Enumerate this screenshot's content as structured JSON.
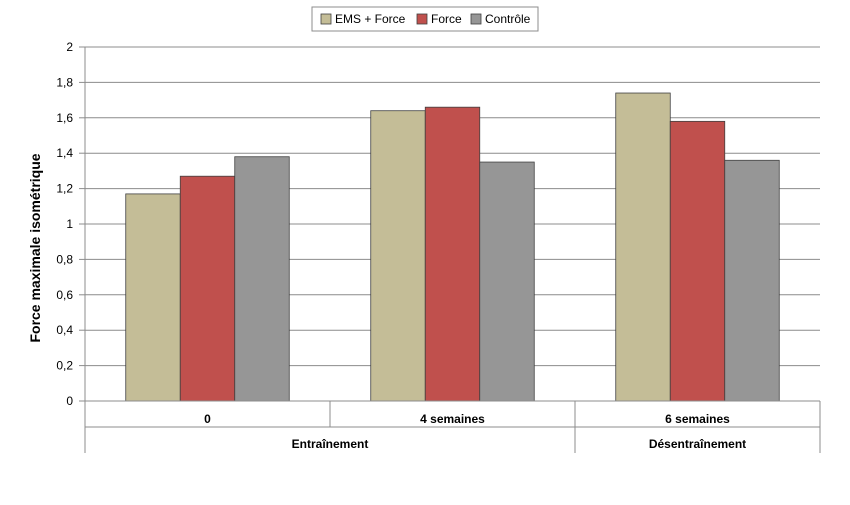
{
  "chart_data": {
    "type": "bar",
    "title": "",
    "xlabel": "",
    "ylabel": "Force maximale isométrique",
    "ylim": [
      0,
      2
    ],
    "yticks": [
      "0",
      "0,2",
      "0,4",
      "0,6",
      "0,8",
      "1",
      "1,2",
      "1,4",
      "1,6",
      "1,8",
      "2"
    ],
    "categories": [
      "0",
      "4 semaines",
      "6 semaines"
    ],
    "groups": [
      {
        "label": "Entraînement",
        "categories": [
          "0",
          "4 semaines"
        ]
      },
      {
        "label": "Désentraînement",
        "categories": [
          "6 semaines"
        ]
      }
    ],
    "series": [
      {
        "name": "EMS + Force",
        "color": "#c4bd97",
        "values": [
          1.17,
          1.64,
          1.74
        ]
      },
      {
        "name": "Force",
        "color": "#c0504d",
        "values": [
          1.27,
          1.66,
          1.58
        ]
      },
      {
        "name": "Contrôle",
        "color": "#969696",
        "values": [
          1.38,
          1.35,
          1.36
        ]
      }
    ],
    "grid": true,
    "legend": "top"
  }
}
